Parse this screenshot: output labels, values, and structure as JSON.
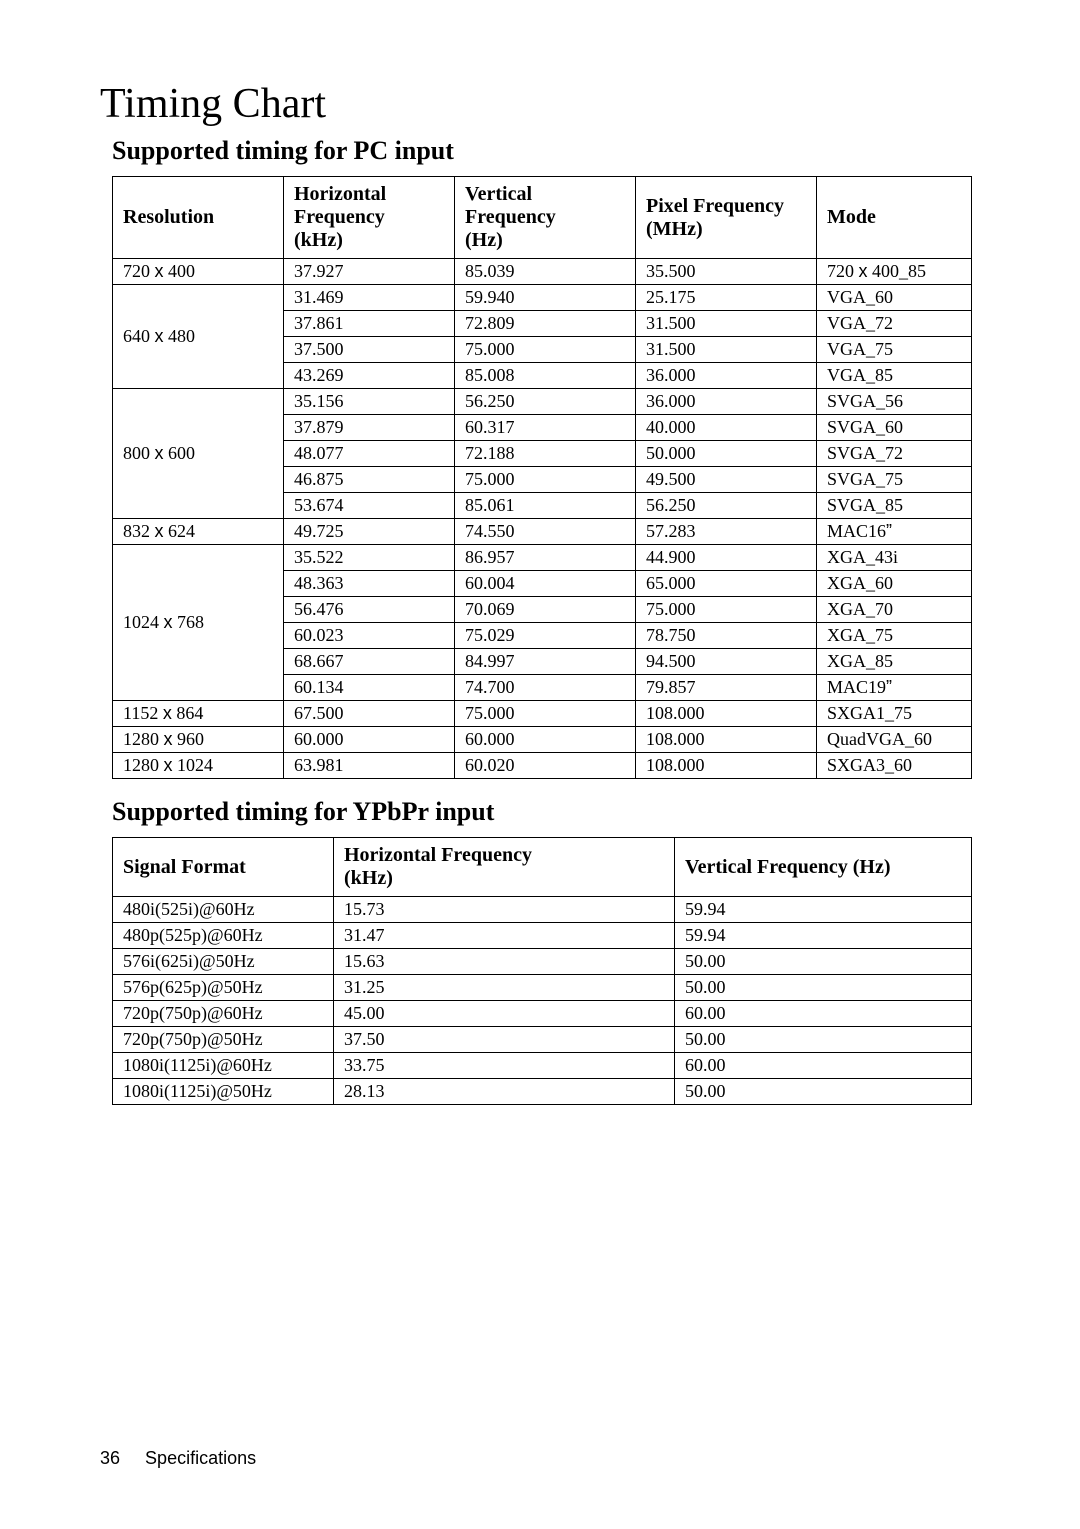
{
  "title": "Timing Chart",
  "pc": {
    "heading": "Supported timing for PC input",
    "headers": [
      "Resolution",
      "Horizontal Frequency (kHz)",
      "Vertical Frequency (Hz)",
      "Pixel Frequency (MHz)",
      "Mode"
    ],
    "groups": [
      {
        "resolution": "720 x 400",
        "rows": [
          [
            "37.927",
            "85.039",
            "35.500",
            "720 x 400_85"
          ]
        ]
      },
      {
        "resolution": "640 x 480",
        "rows": [
          [
            "31.469",
            "59.940",
            "25.175",
            "VGA_60"
          ],
          [
            "37.861",
            "72.809",
            "31.500",
            "VGA_72"
          ],
          [
            "37.500",
            "75.000",
            "31.500",
            "VGA_75"
          ],
          [
            "43.269",
            "85.008",
            "36.000",
            "VGA_85"
          ]
        ]
      },
      {
        "resolution": "800 x 600",
        "rows": [
          [
            "35.156",
            "56.250",
            "36.000",
            "SVGA_56"
          ],
          [
            "37.879",
            "60.317",
            "40.000",
            "SVGA_60"
          ],
          [
            "48.077",
            "72.188",
            "50.000",
            "SVGA_72"
          ],
          [
            "46.875",
            "75.000",
            "49.500",
            "SVGA_75"
          ],
          [
            "53.674",
            "85.061",
            "56.250",
            "SVGA_85"
          ]
        ]
      },
      {
        "resolution": "832 x 624",
        "rows": [
          [
            "49.725",
            "74.550",
            "57.283",
            "MAC16”"
          ]
        ]
      },
      {
        "resolution": "1024 x 768",
        "rows": [
          [
            "35.522",
            "86.957",
            "44.900",
            "XGA_43i"
          ],
          [
            "48.363",
            "60.004",
            "65.000",
            "XGA_60"
          ],
          [
            "56.476",
            "70.069",
            "75.000",
            "XGA_70"
          ],
          [
            "60.023",
            "75.029",
            "78.750",
            "XGA_75"
          ],
          [
            "68.667",
            "84.997",
            "94.500",
            "XGA_85"
          ],
          [
            "60.134",
            "74.700",
            "79.857",
            "MAC19”"
          ]
        ]
      },
      {
        "resolution": "1152 x 864",
        "rows": [
          [
            "67.500",
            "75.000",
            "108.000",
            "SXGA1_75"
          ]
        ]
      },
      {
        "resolution": "1280 x 960",
        "rows": [
          [
            "60.000",
            "60.000",
            "108.000",
            "QuadVGA_60"
          ]
        ]
      },
      {
        "resolution": "1280 x 1024",
        "rows": [
          [
            "63.981",
            "60.020",
            "108.000",
            "SXGA3_60"
          ]
        ]
      }
    ]
  },
  "ypbpr": {
    "heading": "Supported timing for YPbPr input",
    "headers": [
      "Signal Format",
      "Horizontal Frequency (kHz)",
      "Vertical Frequency (Hz)"
    ],
    "rows": [
      [
        "480i(525i)@60Hz",
        "15.73",
        "59.94"
      ],
      [
        "480p(525p)@60Hz",
        "31.47",
        "59.94"
      ],
      [
        "576i(625i)@50Hz",
        "15.63",
        "50.00"
      ],
      [
        "576p(625p)@50Hz",
        "31.25",
        "50.00"
      ],
      [
        "720p(750p)@60Hz",
        "45.00",
        "60.00"
      ],
      [
        "720p(750p)@50Hz",
        "37.50",
        "50.00"
      ],
      [
        "1080i(1125i)@60Hz",
        "33.75",
        "60.00"
      ],
      [
        "1080i(1125i)@50Hz",
        "28.13",
        "50.00"
      ]
    ]
  },
  "footer": {
    "pagenum": "36",
    "section": "Specifications"
  },
  "style": {
    "col_widths_pc": [
      "150px",
      "150px",
      "160px",
      "160px",
      "auto"
    ],
    "col_widths_yp": [
      "200px",
      "320px",
      "auto"
    ],
    "border_color": "#000000",
    "background": "#ffffff",
    "title_fontsize": 42,
    "subheading_fontsize": 26,
    "header_fontsize": 20,
    "cell_fontsize": 18
  }
}
